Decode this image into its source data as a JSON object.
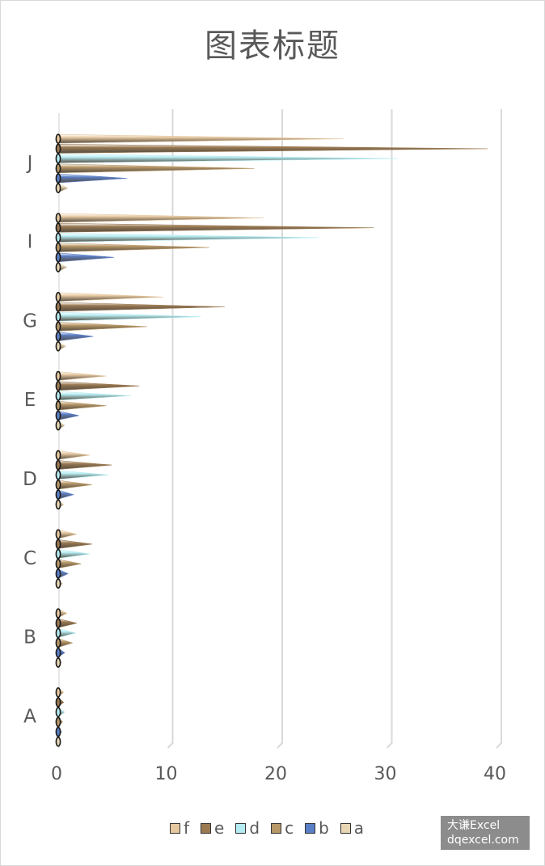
{
  "chart_data": {
    "type": "bar",
    "orientation": "horizontal",
    "title": "图表标题",
    "categories": [
      "A",
      "B",
      "C",
      "D",
      "E",
      "G",
      "I",
      "J"
    ],
    "x_ticks": [
      "0",
      "10",
      "20",
      "30",
      "40"
    ],
    "xlim": [
      0,
      40
    ],
    "grid": "vertical",
    "legend_position": "bottom",
    "series": [
      {
        "name": "f",
        "color": "#e6c8a0",
        "values": [
          0.5,
          0.8,
          1.7,
          2.9,
          4.4,
          9.6,
          18.8,
          26.0
        ]
      },
      {
        "name": "e",
        "color": "#9b7a52",
        "values": [
          0.5,
          1.7,
          3.1,
          4.9,
          7.4,
          15.2,
          28.8,
          39.2
        ]
      },
      {
        "name": "d",
        "color": "#b5ecf2",
        "values": [
          0.6,
          1.6,
          2.9,
          4.6,
          6.6,
          13.0,
          23.8,
          31.0
        ]
      },
      {
        "name": "c",
        "color": "#b89868",
        "values": [
          0.4,
          1.3,
          2.1,
          3.1,
          4.4,
          8.1,
          13.8,
          17.9
        ]
      },
      {
        "name": "b",
        "color": "#5b7fc7",
        "values": [
          0.3,
          0.6,
          0.9,
          1.4,
          1.9,
          3.2,
          5.1,
          6.3
        ]
      },
      {
        "name": "a",
        "color": "#e8d6b4",
        "values": [
          0.2,
          0.3,
          0.4,
          0.5,
          0.6,
          0.7,
          0.8,
          0.9
        ]
      }
    ]
  },
  "watermark": {
    "line1": "大谦Excel",
    "line2": "dqexcel.com"
  }
}
